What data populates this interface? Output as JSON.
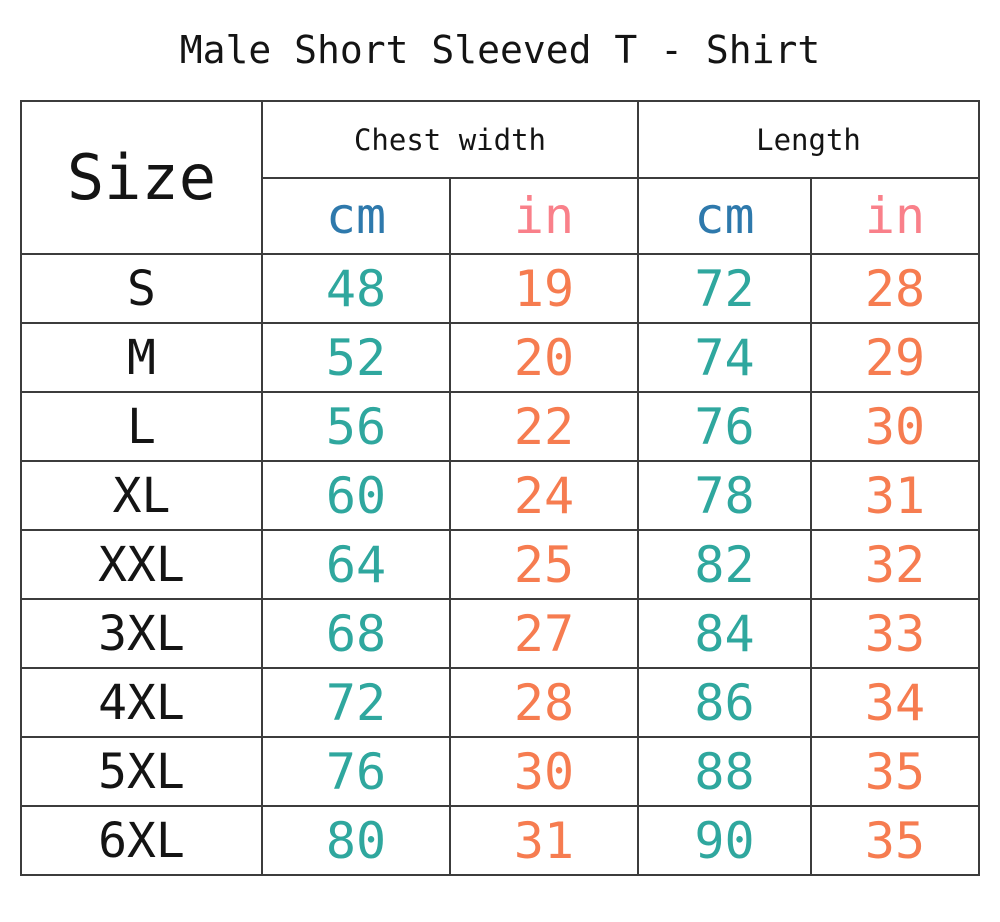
{
  "page": {
    "title": "Male Short Sleeved T - Shirt"
  },
  "colors": {
    "unit_cm_header": "#2e79ac",
    "unit_in_header": "#f9808a",
    "value_cm": "#2fa79e",
    "value_in": "#f67c50",
    "text": "#141414",
    "border": "#3c3c3c"
  },
  "chart_data": {
    "type": "table",
    "title": "Male Short Sleeved T - Shirt",
    "header": {
      "size_label": "Size",
      "groups": [
        "Chest width",
        "Length"
      ],
      "units": [
        "cm",
        "in",
        "cm",
        "in"
      ]
    },
    "columns": [
      "Size",
      "Chest width (cm)",
      "Chest width (in)",
      "Length (cm)",
      "Length (in)"
    ],
    "rows": [
      {
        "size": "S",
        "chest_cm": 48,
        "chest_in": 19,
        "length_cm": 72,
        "length_in": 28
      },
      {
        "size": "M",
        "chest_cm": 52,
        "chest_in": 20,
        "length_cm": 74,
        "length_in": 29
      },
      {
        "size": "L",
        "chest_cm": 56,
        "chest_in": 22,
        "length_cm": 76,
        "length_in": 30
      },
      {
        "size": "XL",
        "chest_cm": 60,
        "chest_in": 24,
        "length_cm": 78,
        "length_in": 31
      },
      {
        "size": "XXL",
        "chest_cm": 64,
        "chest_in": 25,
        "length_cm": 82,
        "length_in": 32
      },
      {
        "size": "3XL",
        "chest_cm": 68,
        "chest_in": 27,
        "length_cm": 84,
        "length_in": 33
      },
      {
        "size": "4XL",
        "chest_cm": 72,
        "chest_in": 28,
        "length_cm": 86,
        "length_in": 34
      },
      {
        "size": "5XL",
        "chest_cm": 76,
        "chest_in": 30,
        "length_cm": 88,
        "length_in": 35
      },
      {
        "size": "6XL",
        "chest_cm": 80,
        "chest_in": 31,
        "length_cm": 90,
        "length_in": 35
      }
    ]
  }
}
